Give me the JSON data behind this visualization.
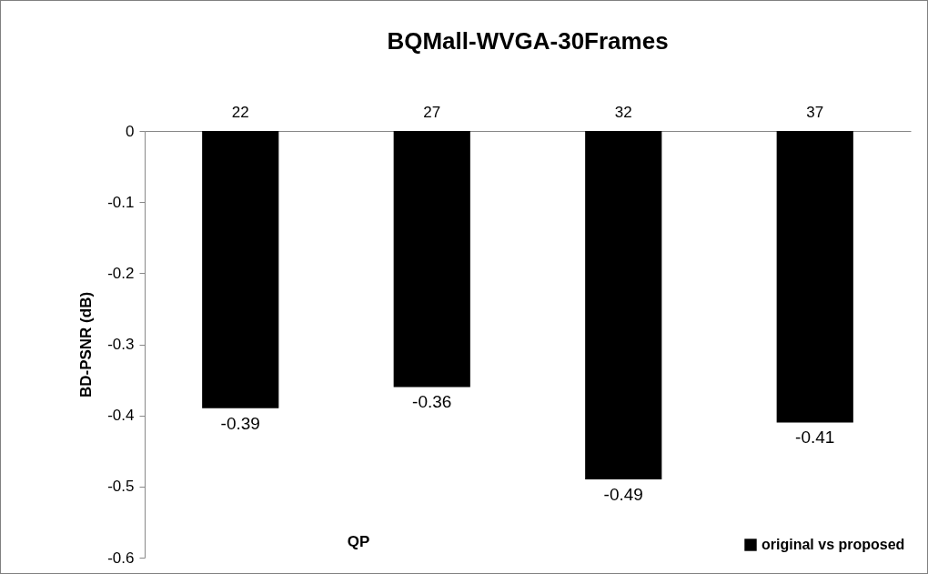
{
  "chart_data": {
    "type": "bar",
    "title": "BQMall-WVGA-30Frames",
    "xlabel": "QP",
    "ylabel": "BD-PSNR (dB)",
    "categories": [
      "22",
      "27",
      "32",
      "37"
    ],
    "series": [
      {
        "name": "original vs proposed",
        "color": "#000000",
        "values": [
          -0.39,
          -0.36,
          -0.49,
          -0.41
        ]
      }
    ],
    "ylim": [
      -0.6,
      0
    ],
    "yticks": [
      -0.6,
      -0.5,
      -0.4,
      -0.3,
      -0.2,
      -0.1,
      0
    ],
    "data_labels": true,
    "legend": "bottom right"
  }
}
